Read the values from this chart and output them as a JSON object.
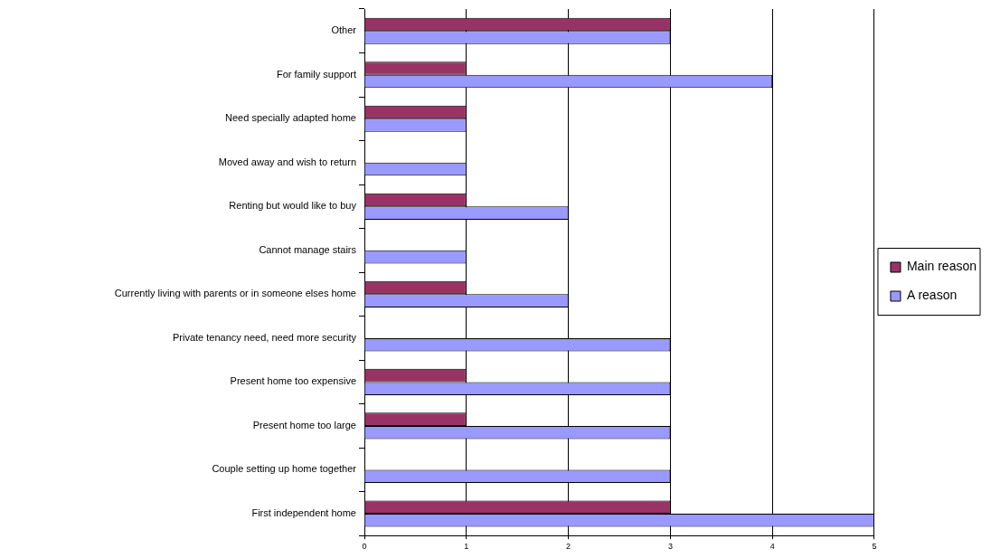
{
  "chart_data": {
    "type": "bar",
    "orientation": "horizontal",
    "categories": [
      "Other",
      "For family support",
      "Need specially adapted home",
      "Moved away and wish to return",
      "Renting but would like to buy",
      "Cannot manage stairs",
      "Currently living with parents or in someone elses home",
      "Private tenancy need, need more security",
      "Present home too expensive",
      "Present home too large",
      "Couple setting up home together",
      "First independent home"
    ],
    "series": [
      {
        "name": "Main reason",
        "color": "#993366",
        "values": [
          3,
          1,
          1,
          null,
          1,
          null,
          1,
          null,
          1,
          1,
          null,
          3
        ]
      },
      {
        "name": "A reason",
        "color": "#9999ff",
        "values": [
          3,
          4,
          1,
          1,
          2,
          1,
          2,
          3,
          3,
          3,
          3,
          5
        ]
      }
    ],
    "xlim": [
      0,
      5
    ],
    "xticks": [
      0,
      1,
      2,
      3,
      4,
      5
    ],
    "grid": "x",
    "legend": "right"
  }
}
